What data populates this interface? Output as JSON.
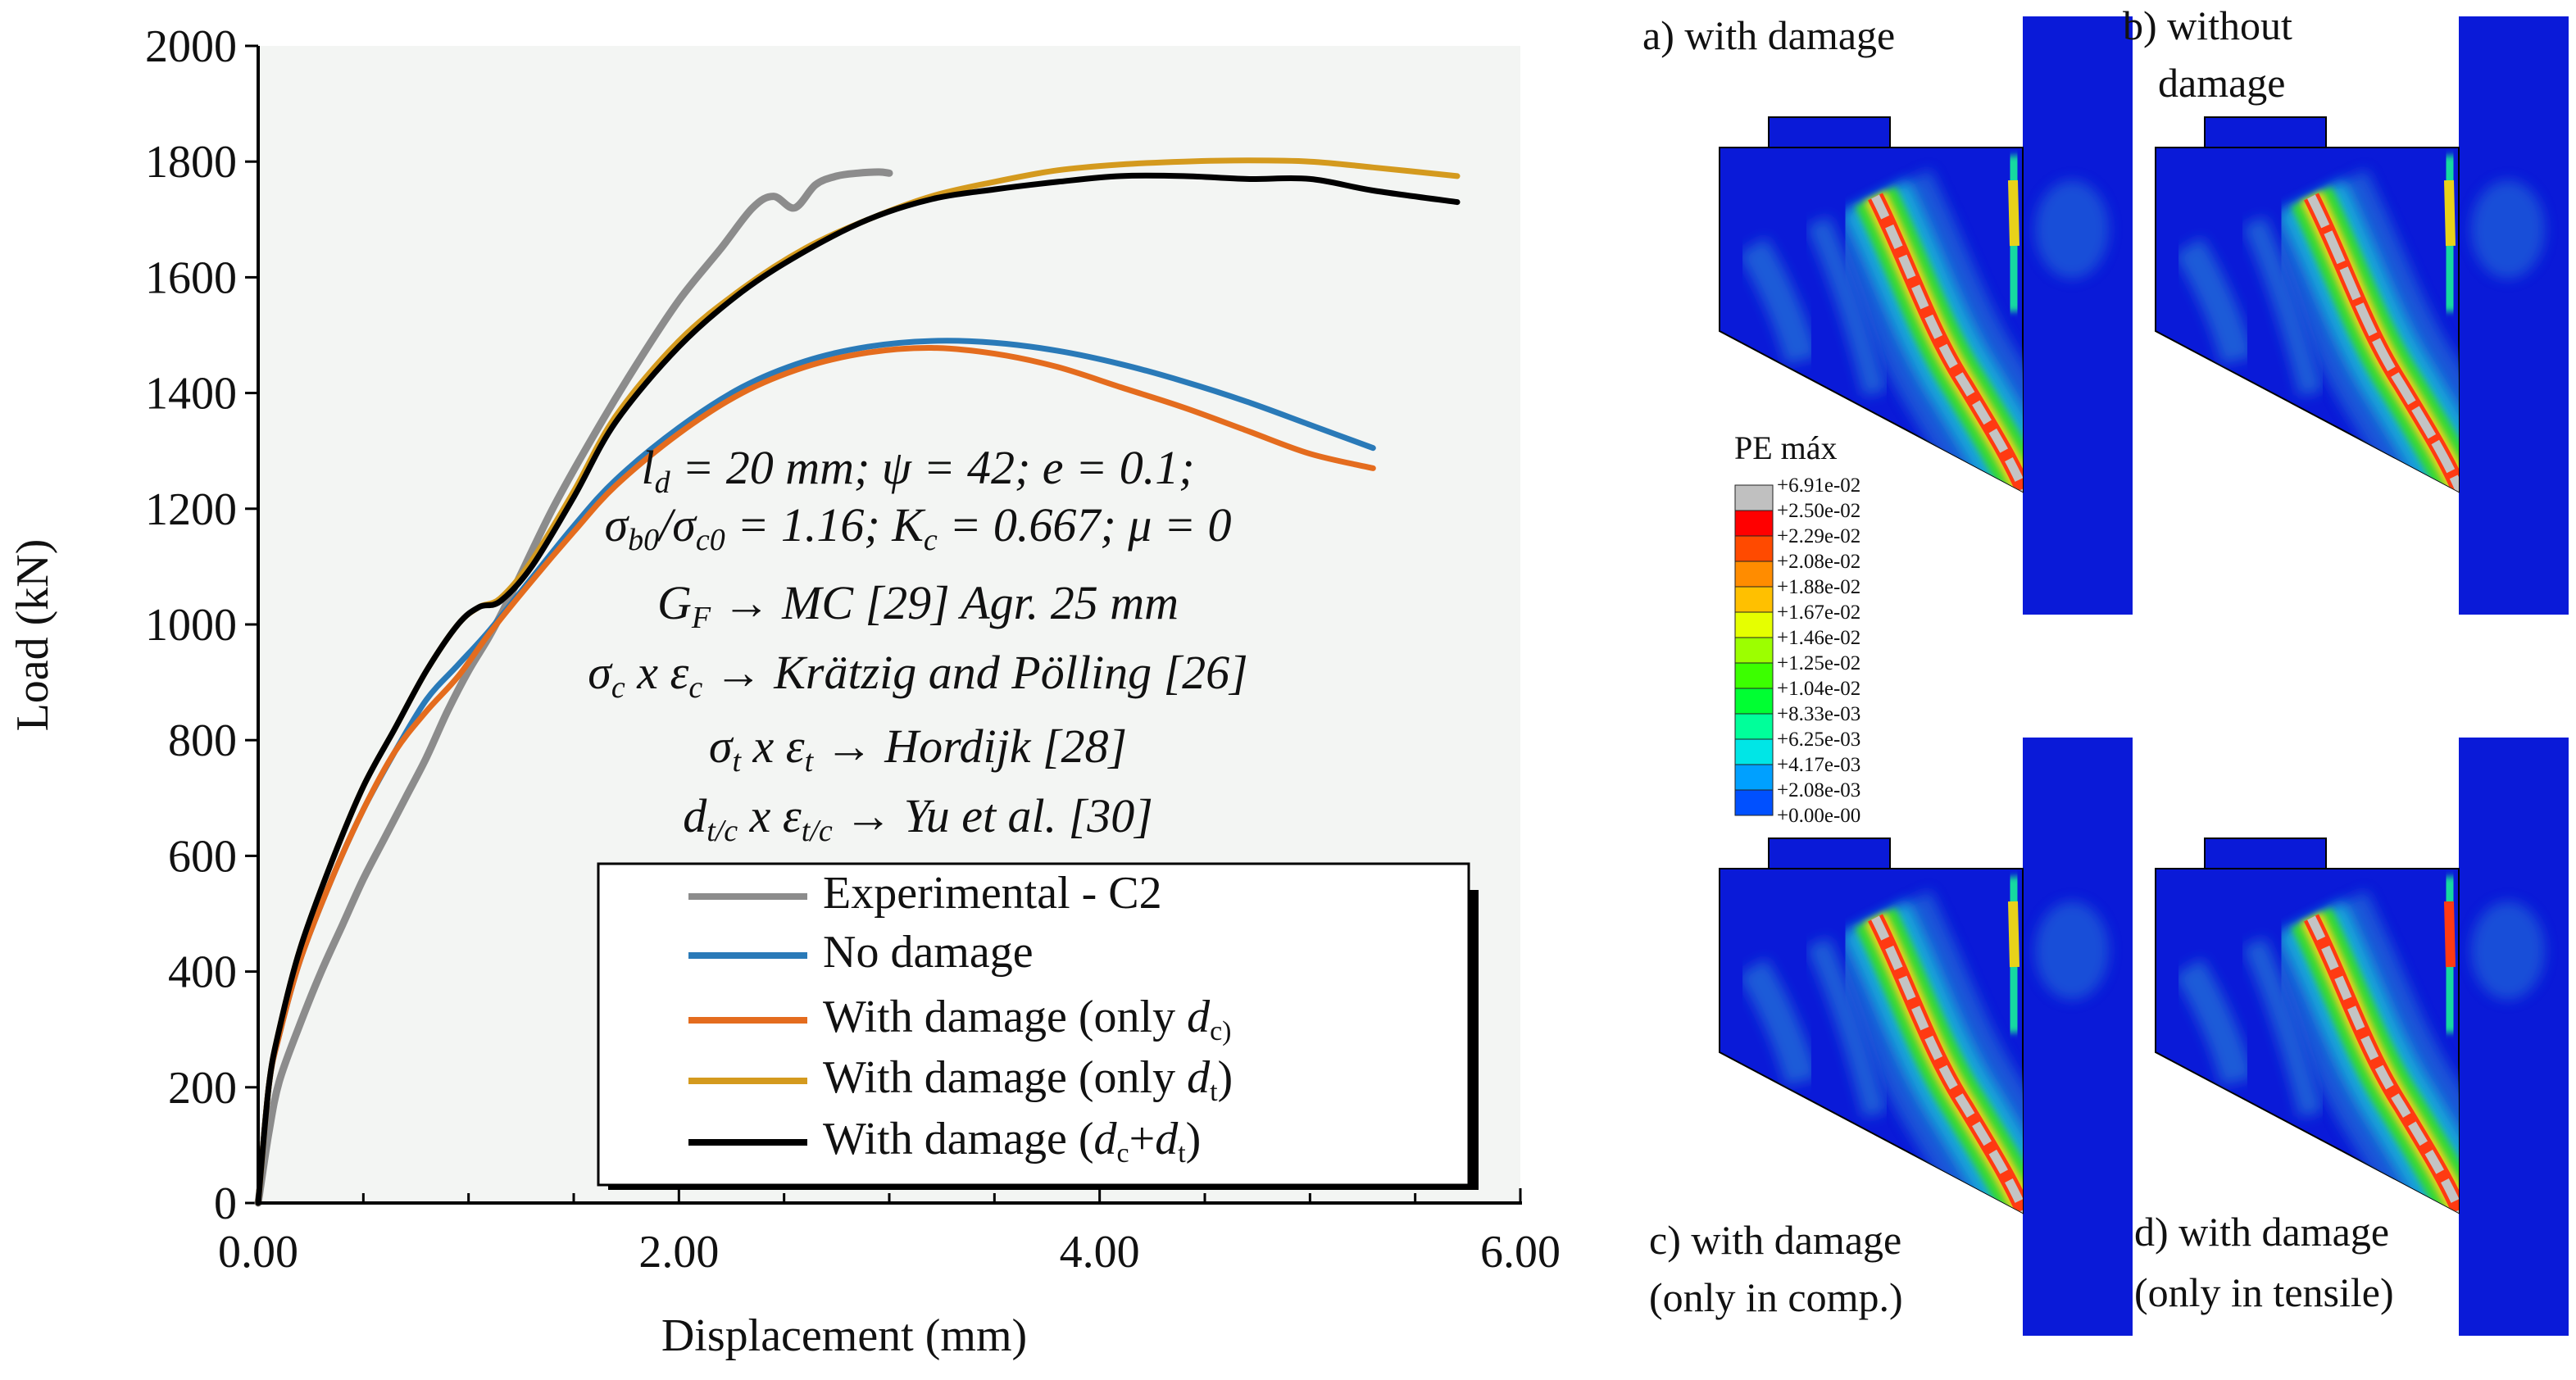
{
  "chart_data": {
    "type": "line",
    "title": "",
    "xlabel": "Displacement (mm)",
    "ylabel": "Load (kN)",
    "xlim": [
      0,
      6
    ],
    "ylim": [
      0,
      2000
    ],
    "x_ticks": [
      0,
      2,
      4,
      6
    ],
    "x_tick_labels": [
      "0.00",
      "2.00",
      "4.00",
      "6.00"
    ],
    "y_ticks": [
      0,
      200,
      400,
      600,
      800,
      1000,
      1200,
      1400,
      1600,
      1800,
      2000
    ],
    "y_tick_labels": [
      "0",
      "200",
      "400",
      "600",
      "800",
      "1000",
      "1200",
      "1400",
      "1600",
      "1800",
      "2000"
    ],
    "grid": false,
    "legend_position": "bottom-right",
    "series": [
      {
        "name": "Experimental - C2",
        "color": "#8c8c8c",
        "x": [
          0,
          0.05,
          0.1,
          0.2,
          0.3,
          0.4,
          0.5,
          0.6,
          0.7,
          0.8,
          0.9,
          1.0,
          1.1,
          1.2,
          1.4,
          1.6,
          1.8,
          2.0,
          2.2,
          2.35,
          2.45,
          2.55,
          2.65,
          2.75,
          2.85,
          2.95,
          3.0
        ],
        "y": [
          0,
          120,
          210,
          310,
          400,
          480,
          560,
          630,
          700,
          770,
          850,
          920,
          980,
          1050,
          1200,
          1330,
          1450,
          1560,
          1650,
          1720,
          1740,
          1720,
          1760,
          1775,
          1780,
          1782,
          1780
        ]
      },
      {
        "name": "No damage",
        "color": "#2a7ab8",
        "x": [
          0,
          0.05,
          0.1,
          0.2,
          0.35,
          0.5,
          0.65,
          0.8,
          0.95,
          1.1,
          1.3,
          1.5,
          1.7,
          2.0,
          2.3,
          2.6,
          2.9,
          3.2,
          3.5,
          3.8,
          4.1,
          4.4,
          4.7,
          5.0,
          5.3
        ],
        "y": [
          0,
          200,
          290,
          420,
          560,
          680,
          780,
          870,
          930,
          990,
          1080,
          1170,
          1250,
          1340,
          1410,
          1455,
          1480,
          1490,
          1487,
          1473,
          1450,
          1420,
          1385,
          1345,
          1305
        ]
      },
      {
        "name": "With damage (only d_c)",
        "color": "#e46c1e",
        "x": [
          0,
          0.05,
          0.1,
          0.2,
          0.35,
          0.5,
          0.65,
          0.8,
          0.95,
          1.1,
          1.3,
          1.5,
          1.7,
          2.0,
          2.3,
          2.6,
          2.9,
          3.2,
          3.5,
          3.8,
          4.1,
          4.4,
          4.7,
          5.0,
          5.3
        ],
        "y": [
          0,
          200,
          290,
          420,
          560,
          680,
          780,
          850,
          910,
          985,
          1075,
          1160,
          1240,
          1330,
          1400,
          1445,
          1470,
          1478,
          1468,
          1445,
          1410,
          1375,
          1335,
          1295,
          1270
        ]
      },
      {
        "name": "With damage (only d_t)",
        "color": "#d49a1e",
        "x": [
          0,
          0.05,
          0.1,
          0.2,
          0.35,
          0.5,
          0.65,
          0.8,
          0.95,
          1.05,
          1.15,
          1.3,
          1.5,
          1.7,
          2.0,
          2.3,
          2.6,
          2.9,
          3.2,
          3.5,
          3.8,
          4.1,
          4.4,
          4.7,
          5.0,
          5.3,
          5.7
        ],
        "y": [
          0,
          200,
          300,
          440,
          590,
          720,
          820,
          920,
          1000,
          1030,
          1045,
          1110,
          1230,
          1360,
          1490,
          1580,
          1650,
          1700,
          1740,
          1765,
          1785,
          1795,
          1800,
          1802,
          1800,
          1790,
          1775
        ]
      },
      {
        "name": "With damage (d_c+d_t)",
        "color": "#000000",
        "x": [
          0,
          0.05,
          0.1,
          0.2,
          0.35,
          0.5,
          0.65,
          0.8,
          0.95,
          1.05,
          1.15,
          1.3,
          1.5,
          1.7,
          2.0,
          2.3,
          2.6,
          2.9,
          3.2,
          3.5,
          3.8,
          4.1,
          4.4,
          4.7,
          5.0,
          5.3,
          5.7
        ],
        "y": [
          0,
          200,
          300,
          440,
          590,
          720,
          820,
          920,
          1000,
          1030,
          1040,
          1100,
          1220,
          1350,
          1480,
          1575,
          1645,
          1700,
          1735,
          1752,
          1765,
          1775,
          1775,
          1770,
          1770,
          1750,
          1730
        ]
      }
    ]
  },
  "legend": [
    {
      "pre": "Experimental - C2",
      "sub": "",
      "mid": "",
      "sub2": "",
      "post": ""
    },
    {
      "pre": "No damage",
      "sub": "",
      "mid": "",
      "sub2": "",
      "post": ""
    },
    {
      "pre": "With damage (only ",
      "sub": "d",
      "sub_idx": "c)",
      "mid": "",
      "sub2": "",
      "post": ""
    },
    {
      "pre": "With damage (only ",
      "sub": "d",
      "sub_idx": "t",
      "mid": ")",
      "sub2": "",
      "post": ""
    },
    {
      "pre": "With damage (",
      "sub": "d",
      "sub_idx": "c",
      "mid": "+",
      "sub2": "d",
      "sub2_idx": "t",
      "post": ")"
    }
  ],
  "annotation": {
    "line1": "l_d = 20 mm; ψ = 42; e = 0.1;",
    "line1_parts": [
      "l",
      "d",
      "  = 20 mm; ψ = 42; e = 0.1;"
    ],
    "line2_parts": [
      "σ",
      "b0",
      "/σ",
      "c0",
      " = 1.16; K",
      "c",
      " = 0.667; μ = 0"
    ],
    "line3_parts": [
      "G",
      "F",
      " → MC [29] Agr. 25 mm"
    ],
    "line4_parts": [
      "σ",
      "c",
      " x ε",
      "c",
      " → Krätzig and Pölling [26]"
    ],
    "line5_parts": [
      "σ",
      "t",
      " x ε",
      "t",
      " → Hordijk [28]"
    ],
    "line6_parts": [
      "d",
      "t/c",
      " x ε",
      "t/c",
      " → Yu et al. [30]"
    ]
  },
  "panels": {
    "a": "a) with damage",
    "b_line1": "b) without",
    "b_line2": "damage",
    "c_line1": "c) with damage",
    "c_line2": "(only in comp.)",
    "d_line1": "d) with damage",
    "d_line2": "(only in tensile)"
  },
  "colorbar": {
    "title": "PE máx",
    "labels": [
      "+6.91e-02",
      "+2.50e-02",
      "+2.29e-02",
      "+2.08e-02",
      "+1.88e-02",
      "+1.67e-02",
      "+1.46e-02",
      "+1.25e-02",
      "+1.04e-02",
      "+8.33e-03",
      "+6.25e-03",
      "+4.17e-03",
      "+2.08e-03",
      "+0.00e-00"
    ],
    "colors": [
      "#c0c0c0",
      "#ff0000",
      "#ff4a00",
      "#ff8c00",
      "#ffc000",
      "#e6ff00",
      "#9cff00",
      "#3cff00",
      "#00ff32",
      "#00ff9a",
      "#00e6e6",
      "#00a0ff",
      "#0050ff",
      "#0000e6"
    ]
  },
  "contour_colors": {
    "background": "#0a1ad8",
    "level1": "#1f5bd8",
    "level2": "#16a8d8",
    "level3": "#19d9a0",
    "level4": "#34d934",
    "level5": "#e8d21a",
    "level6": "#ff3a12",
    "peak": "#c4c4c4"
  }
}
